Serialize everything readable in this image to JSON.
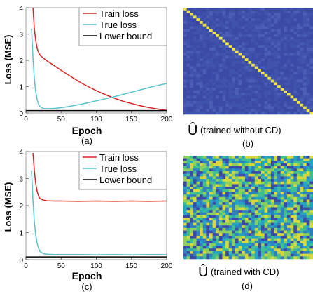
{
  "chart_data": [
    {
      "type": "line",
      "panel_label": "(a)",
      "xlabel": "Epoch",
      "ylabel": "Loss (MSE)",
      "xlim": [
        0,
        200
      ],
      "ylim": [
        0,
        4
      ],
      "xticks": [
        "0",
        "50",
        "100",
        "150",
        "200"
      ],
      "yticks": [
        "0",
        "1",
        "2",
        "3",
        "4"
      ],
      "legend_position": "top-right",
      "series": [
        {
          "name": "Train loss",
          "color": "#d62728",
          "x": [
            10,
            12,
            14,
            16,
            18,
            20,
            25,
            30,
            40,
            50,
            60,
            70,
            80,
            90,
            100,
            110,
            120,
            130,
            140,
            150,
            160,
            170,
            180,
            190,
            200
          ],
          "y": [
            4.0,
            3.2,
            2.75,
            2.45,
            2.3,
            2.2,
            2.08,
            1.98,
            1.8,
            1.62,
            1.45,
            1.28,
            1.12,
            0.98,
            0.85,
            0.73,
            0.62,
            0.52,
            0.43,
            0.36,
            0.29,
            0.23,
            0.18,
            0.14,
            0.1
          ]
        },
        {
          "name": "True loss",
          "color": "#5bc3cf",
          "x": [
            8,
            10,
            12,
            14,
            16,
            18,
            20,
            25,
            30,
            40,
            50,
            60,
            70,
            80,
            90,
            100,
            110,
            120,
            130,
            140,
            150,
            160,
            170,
            180,
            190,
            200
          ],
          "y": [
            3.2,
            2.1,
            1.3,
            0.8,
            0.5,
            0.33,
            0.24,
            0.17,
            0.16,
            0.17,
            0.2,
            0.24,
            0.29,
            0.34,
            0.4,
            0.46,
            0.52,
            0.58,
            0.65,
            0.72,
            0.79,
            0.86,
            0.93,
            1.0,
            1.06,
            1.12
          ]
        },
        {
          "name": "Lower bound",
          "color": "#000000",
          "x": [
            0,
            200
          ],
          "y": [
            0.09,
            0.09
          ]
        }
      ]
    },
    {
      "type": "heatmap",
      "panel_label": "(b)",
      "caption_symbol": "Û",
      "caption_text": "(trained without CD)",
      "pattern": "diagonal",
      "size": 40,
      "colors": {
        "off_diag": "#3b4aa6",
        "diag": "#f0e442"
      }
    },
    {
      "type": "line",
      "panel_label": "(c)",
      "xlabel": "Epoch",
      "ylabel": "Loss (MSE)",
      "xlim": [
        0,
        200
      ],
      "ylim": [
        0,
        4
      ],
      "xticks": [
        "0",
        "50",
        "100",
        "150",
        "200"
      ],
      "yticks": [
        "0",
        "1",
        "2",
        "3",
        "4"
      ],
      "legend_position": "top-right",
      "series": [
        {
          "name": "Train loss",
          "color": "#d62728",
          "x": [
            10,
            12,
            14,
            16,
            18,
            20,
            25,
            30,
            40,
            50,
            75,
            100,
            125,
            150,
            175,
            200
          ],
          "y": [
            3.95,
            3.3,
            2.8,
            2.52,
            2.35,
            2.26,
            2.2,
            2.18,
            2.17,
            2.17,
            2.16,
            2.17,
            2.16,
            2.17,
            2.16,
            2.17
          ]
        },
        {
          "name": "True loss",
          "color": "#5bc3cf",
          "x": [
            8,
            10,
            12,
            14,
            16,
            18,
            20,
            25,
            30,
            40,
            50,
            75,
            100,
            125,
            150,
            175,
            200
          ],
          "y": [
            3.3,
            2.2,
            1.4,
            0.9,
            0.6,
            0.42,
            0.3,
            0.22,
            0.2,
            0.19,
            0.19,
            0.19,
            0.18,
            0.19,
            0.18,
            0.19,
            0.19
          ]
        },
        {
          "name": "Lower bound",
          "color": "#000000",
          "x": [
            0,
            200
          ],
          "y": [
            0.1,
            0.1
          ]
        }
      ]
    },
    {
      "type": "heatmap",
      "panel_label": "(d)",
      "caption_symbol": "Û",
      "caption_text": "(trained with CD)",
      "pattern": "random",
      "size": 40,
      "colors": {
        "palette": [
          "#3b4aa6",
          "#2f7fc1",
          "#24a3c2",
          "#3fbf8f",
          "#8ccf5a",
          "#d8d73b"
        ]
      }
    }
  ]
}
